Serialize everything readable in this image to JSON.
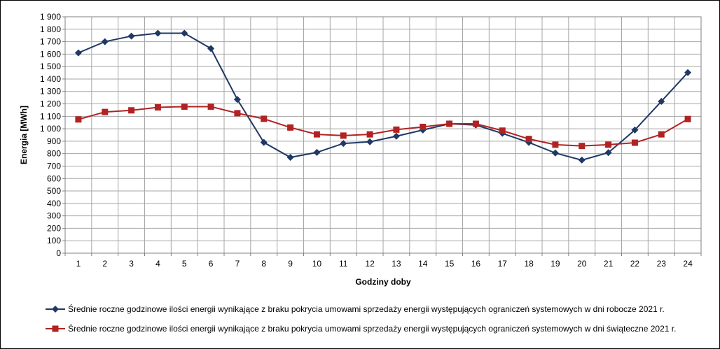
{
  "chart_data": {
    "type": "line",
    "title": "",
    "xlabel": "Godziny doby",
    "ylabel": "Energia [MWh]",
    "ylim": [
      0,
      1900
    ],
    "ytick_step": 100,
    "grid": true,
    "legend_position": "bottom",
    "categories": [
      "1",
      "2",
      "3",
      "4",
      "5",
      "6",
      "7",
      "8",
      "9",
      "10",
      "11",
      "12",
      "13",
      "14",
      "15",
      "16",
      "17",
      "18",
      "19",
      "20",
      "21",
      "22",
      "23",
      "24"
    ],
    "series": [
      {
        "name": "Średnie roczne godzinowe ilości energii wynikające z braku pokrycia umowami sprzedaży energii występujących ograniczeń systemowych w dni robocze 2021 r.",
        "color": "#1F3864",
        "marker": "diamond",
        "values": [
          1610,
          1700,
          1745,
          1768,
          1768,
          1645,
          1235,
          890,
          770,
          810,
          882,
          895,
          940,
          990,
          1040,
          1030,
          963,
          890,
          805,
          748,
          808,
          990,
          1220,
          1452
        ]
      },
      {
        "name": "Średnie roczne godzinowe ilości energii wynikające z braku pokrycia umowami sprzedaży energii występujących ograniczeń systemowych w dni świąteczne 2021 r.",
        "color": "#B22222",
        "marker": "square",
        "values": [
          1075,
          1135,
          1148,
          1172,
          1178,
          1178,
          1125,
          1080,
          1010,
          955,
          945,
          955,
          993,
          1015,
          1040,
          1040,
          985,
          918,
          872,
          862,
          872,
          888,
          955,
          1078
        ]
      }
    ]
  }
}
